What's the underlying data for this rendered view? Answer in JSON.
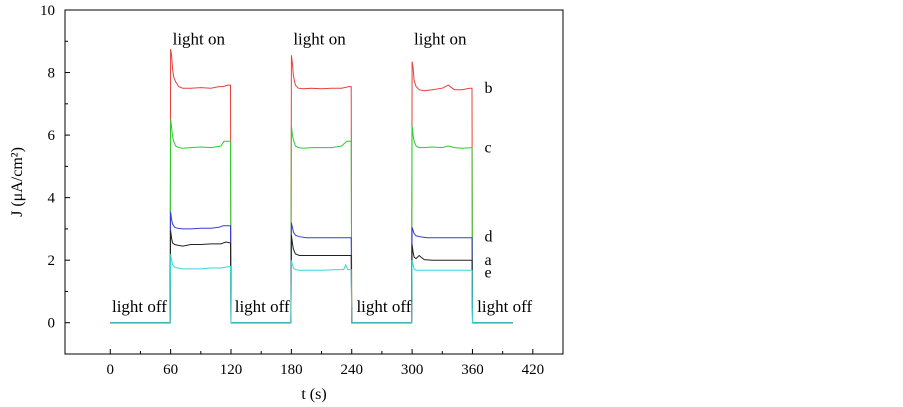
{
  "chart_data": {
    "type": "line",
    "title": "",
    "xlabel": "t  (s)",
    "ylabel": "J  (μA/cm²)",
    "xlim": [
      -45,
      450
    ],
    "ylim": [
      -1,
      10
    ],
    "xticks": [
      0,
      60,
      120,
      180,
      240,
      300,
      360,
      420
    ],
    "yticks": [
      0,
      2,
      4,
      6,
      8,
      10
    ],
    "grid": false,
    "annotations": [
      {
        "text": "light on",
        "x": 88,
        "y": 8.9
      },
      {
        "text": "light on",
        "x": 208,
        "y": 8.9
      },
      {
        "text": "light on",
        "x": 328,
        "y": 8.9
      },
      {
        "text": "light off",
        "x": 29,
        "y": 0.35
      },
      {
        "text": "light off",
        "x": 151,
        "y": 0.35
      },
      {
        "text": "light off",
        "x": 272,
        "y": 0.35
      },
      {
        "text": "light off",
        "x": 392,
        "y": 0.35
      }
    ],
    "series": [
      {
        "name": "b",
        "color": "#e8403a",
        "label_point": [
          370,
          7.5
        ],
        "x": [
          0,
          59.5,
          60,
          61,
          62,
          63,
          65,
          68,
          72,
          80,
          90,
          100,
          108,
          112,
          117,
          119.5,
          120,
          179.5,
          180,
          181,
          182,
          184,
          187,
          192,
          200,
          210,
          220,
          230,
          237,
          239.5,
          240,
          299.5,
          300,
          301,
          302,
          304,
          307,
          312,
          320,
          330,
          336,
          342,
          350,
          357,
          359.5,
          360,
          400
        ],
        "y": [
          0,
          0,
          8.75,
          8.55,
          8.1,
          7.85,
          7.7,
          7.55,
          7.5,
          7.5,
          7.52,
          7.5,
          7.55,
          7.55,
          7.6,
          7.6,
          0,
          0,
          8.55,
          8.3,
          7.9,
          7.6,
          7.5,
          7.48,
          7.5,
          7.48,
          7.5,
          7.5,
          7.55,
          7.55,
          0,
          0,
          8.35,
          8.15,
          7.75,
          7.55,
          7.45,
          7.42,
          7.45,
          7.5,
          7.6,
          7.45,
          7.45,
          7.5,
          7.5,
          0,
          0
        ]
      },
      {
        "name": "c",
        "color": "#2ecc2e",
        "label_point": [
          370,
          5.6
        ],
        "x": [
          0,
          59.5,
          60,
          61,
          62,
          63,
          65,
          68,
          72,
          80,
          90,
          100,
          110,
          113,
          118,
          119.5,
          120,
          179.5,
          180,
          181,
          182,
          184,
          187,
          192,
          200,
          210,
          220,
          230,
          235,
          239.5,
          240,
          299.5,
          300,
          301,
          302,
          304,
          307,
          312,
          320,
          330,
          336,
          342,
          350,
          359.5,
          360,
          400
        ],
        "y": [
          0,
          0,
          6.5,
          6.25,
          5.95,
          5.8,
          5.65,
          5.6,
          5.58,
          5.6,
          5.62,
          5.6,
          5.65,
          5.8,
          5.8,
          5.8,
          0,
          0,
          6.3,
          6.0,
          5.85,
          5.65,
          5.6,
          5.58,
          5.6,
          5.6,
          5.6,
          5.65,
          5.8,
          5.8,
          0,
          0,
          6.3,
          6.0,
          5.8,
          5.65,
          5.6,
          5.6,
          5.62,
          5.6,
          5.65,
          5.6,
          5.58,
          5.6,
          0,
          0
        ]
      },
      {
        "name": "d",
        "color": "#3a3ad6",
        "label_point": [
          370,
          2.75
        ],
        "x": [
          0,
          59.5,
          60,
          61,
          62,
          64,
          67,
          72,
          80,
          90,
          100,
          108,
          112,
          119.5,
          120,
          179.5,
          180,
          181,
          182,
          184,
          188,
          195,
          210,
          225,
          239.5,
          240,
          299.5,
          300,
          301,
          302,
          304,
          308,
          315,
          330,
          345,
          359.5,
          360,
          400
        ],
        "y": [
          0,
          0,
          3.55,
          3.3,
          3.15,
          3.05,
          3.02,
          3.0,
          3.0,
          3.02,
          3.02,
          3.05,
          3.1,
          3.1,
          0,
          0,
          3.2,
          3.05,
          2.9,
          2.8,
          2.75,
          2.72,
          2.72,
          2.72,
          2.72,
          0,
          0,
          3.05,
          2.95,
          2.85,
          2.78,
          2.75,
          2.72,
          2.72,
          2.72,
          2.72,
          0,
          0
        ]
      },
      {
        "name": "a",
        "color": "#222222",
        "label_point": [
          370,
          2.0
        ],
        "x": [
          0,
          59.5,
          60,
          61,
          62,
          64,
          67,
          72,
          80,
          90,
          100,
          110,
          115,
          119.5,
          120,
          179.5,
          180,
          181,
          182,
          184,
          188,
          195,
          210,
          225,
          239.5,
          240,
          299.5,
          300,
          301,
          302,
          304,
          307,
          312,
          320,
          330,
          345,
          359.5,
          360,
          400
        ],
        "y": [
          0,
          0,
          2.95,
          2.7,
          2.55,
          2.5,
          2.48,
          2.45,
          2.5,
          2.5,
          2.52,
          2.52,
          2.58,
          2.55,
          0,
          0,
          2.8,
          2.55,
          2.35,
          2.2,
          2.15,
          2.15,
          2.15,
          2.15,
          2.15,
          0,
          0,
          2.5,
          2.25,
          2.1,
          2.05,
          2.15,
          2.02,
          2.0,
          2.0,
          2.0,
          2.0,
          0,
          0
        ]
      },
      {
        "name": "e",
        "color": "#3ad6d6",
        "label_point": [
          370,
          1.6
        ],
        "x": [
          0,
          59.5,
          60,
          61,
          62,
          64,
          67,
          72,
          80,
          90,
          100,
          110,
          119.5,
          120,
          179.5,
          180,
          181,
          182,
          184,
          188,
          195,
          210,
          225,
          232,
          234,
          236,
          239.5,
          240,
          299.5,
          300,
          301,
          302,
          304,
          308,
          315,
          330,
          345,
          359.5,
          360,
          400
        ],
        "y": [
          0,
          0,
          2.2,
          2.0,
          1.85,
          1.78,
          1.75,
          1.72,
          1.72,
          1.72,
          1.75,
          1.75,
          1.8,
          0,
          0,
          2.0,
          1.85,
          1.75,
          1.7,
          1.68,
          1.68,
          1.68,
          1.7,
          1.7,
          1.85,
          1.7,
          1.7,
          0,
          0,
          2.0,
          1.85,
          1.72,
          1.68,
          1.68,
          1.68,
          1.68,
          1.68,
          1.68,
          0,
          0
        ]
      }
    ]
  }
}
